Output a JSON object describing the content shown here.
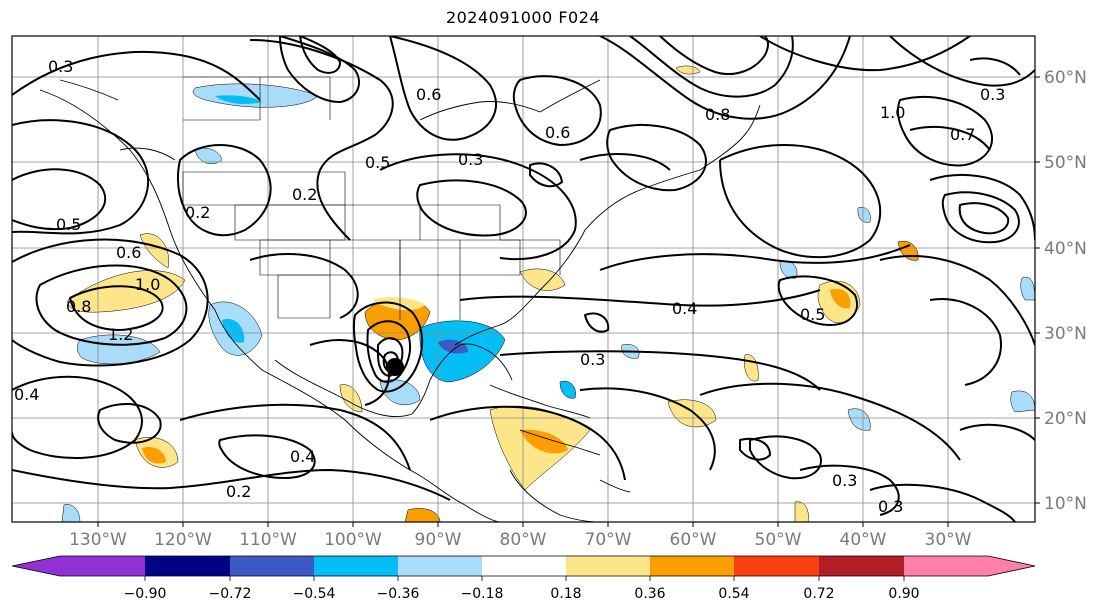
{
  "title": "2024091000 F024",
  "map": {
    "lon_labels": [
      "130°W",
      "120°W",
      "110°W",
      "100°W",
      "90°W",
      "80°W",
      "70°W",
      "60°W",
      "50°W",
      "40°W",
      "30°W"
    ],
    "lat_labels": [
      "60°N",
      "50°N",
      "40°N",
      "30°N",
      "20°N",
      "10°N"
    ],
    "contour_labels": [
      "0.3",
      "0.6",
      "0.8",
      "1.0",
      "1.2",
      "0.5",
      "0.2",
      "0.4",
      "0.3",
      "0.6",
      "0.8",
      "1.0",
      "0.7",
      "0.5",
      "0.3",
      "0.4",
      "0.3",
      "0.2",
      "0.4",
      "0.5",
      "0.6",
      "0.3",
      "0.2",
      "0.3"
    ],
    "fill_colors": {
      "pos_018_036": "#fde68a",
      "pos_036_054": "#fb9e00",
      "neg_018_036": "#a9dcf8",
      "neg_036_054": "#05bef5",
      "neg_054_072": "#3c59c6",
      "land_border": "#000000"
    }
  },
  "colorbar": {
    "ticks": [
      "−0.90",
      "−0.72",
      "−0.54",
      "−0.36",
      "−0.18",
      "0.18",
      "0.36",
      "0.54",
      "0.72",
      "0.90"
    ],
    "colors": [
      "#9131d6",
      "#030284",
      "#3c59c6",
      "#05bef5",
      "#a9dcf8",
      "#ffffff",
      "#fde68a",
      "#fb9e00",
      "#fa4010",
      "#b21e26",
      "#ff80a8"
    ]
  }
}
